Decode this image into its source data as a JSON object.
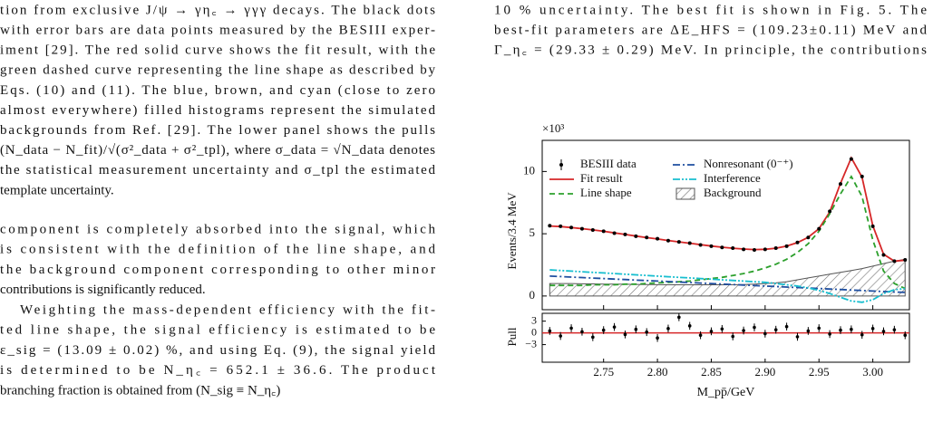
{
  "text": {
    "left_caption": [
      "tion from exclusive J/ψ → γη꜀ → γγγ decays. The black dots",
      "with error bars are data points measured by the BESIII exper-",
      "iment [29]. The red solid curve shows the fit result, with the",
      "green dashed curve representing the line shape as described by",
      "Eqs. (10) and (11). The blue, brown, and cyan (close to zero",
      "almost everywhere) filled histograms represent the simulated",
      "backgrounds from Ref. [29]. The lower panel shows the pulls",
      "(N_data − N_fit)/√(σ²_data + σ²_tpl), where σ_data = √N_data denotes",
      "the statistical measurement uncertainty and σ_tpl the estimated",
      "template uncertainty."
    ],
    "left_body": [
      [
        "component is completely absorbed into the signal, which",
        "is consistent with the definition of the line shape, and",
        "the background component corresponding to other minor",
        "contributions is significantly reduced."
      ],
      [
        "Weighting the mass-dependent efficiency with the fit-",
        "ted line shape, the signal efficiency is estimated to be",
        "ε_sig = (13.09 ± 0.02) %, and using Eq. (9), the signal yield",
        "is determined to be N_η꜀ = 652.1 ± 36.6. The product",
        "branching fraction is obtained from (N_sig ≡ N_η꜀)"
      ]
    ],
    "right_top": [
      "10 % uncertainty. The best fit is shown in Fig. 5. The",
      "best-fit parameters are ΔE_HFS = (109.23±0.11) MeV and",
      "Γ_η꜀ = (29.33 ± 0.29) MeV. In principle, the contributions"
    ]
  },
  "chart_data": {
    "type": "line",
    "scale_label": "×10³",
    "ylabel": "Events/3.4 MeV",
    "xlabel": "M_pp̄/GeV",
    "x": [
      2.7,
      2.71,
      2.72,
      2.73,
      2.74,
      2.75,
      2.76,
      2.77,
      2.78,
      2.79,
      2.8,
      2.81,
      2.82,
      2.83,
      2.84,
      2.85,
      2.86,
      2.87,
      2.88,
      2.89,
      2.9,
      2.91,
      2.92,
      2.93,
      2.94,
      2.95,
      2.96,
      2.97,
      2.98,
      2.99,
      3.0,
      3.01,
      3.02,
      3.03
    ],
    "xlim": [
      2.693,
      3.034
    ],
    "xticks": [
      2.75,
      2.8,
      2.85,
      2.9,
      2.95,
      3.0
    ],
    "xtick_labels": [
      "2.75",
      "2.80",
      "2.85",
      "2.90",
      "2.95",
      "3.00"
    ],
    "ylim": [
      -1.1,
      12.5
    ],
    "yticks": [
      0,
      5,
      10
    ],
    "series": [
      {
        "name": "BESIII data",
        "color": "#000000",
        "style": "points",
        "values": [
          5.65,
          5.6,
          5.5,
          5.4,
          5.3,
          5.2,
          5.05,
          4.95,
          4.8,
          4.7,
          4.6,
          4.45,
          4.35,
          4.25,
          4.1,
          4.0,
          3.9,
          3.85,
          3.75,
          3.7,
          3.75,
          3.85,
          4.0,
          4.3,
          4.7,
          5.4,
          6.8,
          9.0,
          11.0,
          9.6,
          5.6,
          3.3,
          2.8,
          2.9
        ],
        "errors": [
          0.12,
          0.12,
          0.12,
          0.12,
          0.12,
          0.12,
          0.12,
          0.12,
          0.12,
          0.12,
          0.12,
          0.12,
          0.12,
          0.12,
          0.12,
          0.12,
          0.12,
          0.12,
          0.12,
          0.12,
          0.12,
          0.12,
          0.12,
          0.12,
          0.12,
          0.12,
          0.12,
          0.12,
          0.12,
          0.12,
          0.12,
          0.12,
          0.12,
          0.12
        ]
      },
      {
        "name": "Fit result",
        "color": "#d62728",
        "style": "solid",
        "values": [
          5.62,
          5.58,
          5.5,
          5.41,
          5.31,
          5.2,
          5.07,
          4.94,
          4.81,
          4.69,
          4.58,
          4.46,
          4.35,
          4.24,
          4.12,
          4.01,
          3.92,
          3.84,
          3.77,
          3.73,
          3.75,
          3.84,
          4.01,
          4.29,
          4.72,
          5.4,
          6.75,
          9.05,
          11.1,
          9.55,
          5.65,
          3.35,
          2.8,
          2.88
        ]
      },
      {
        "name": "Line shape",
        "color": "#2ca02c",
        "style": "dashed",
        "values": [
          0.85,
          0.85,
          0.85,
          0.85,
          0.9,
          0.9,
          0.9,
          0.95,
          0.95,
          1.0,
          1.05,
          1.1,
          1.15,
          1.2,
          1.3,
          1.4,
          1.5,
          1.65,
          1.8,
          2.0,
          2.25,
          2.55,
          2.95,
          3.5,
          4.2,
          5.2,
          6.6,
          8.2,
          9.6,
          8.0,
          4.5,
          2.0,
          1.0,
          0.6
        ]
      },
      {
        "name": "Nonresonant (0⁻⁺)",
        "color": "#1f4fa0",
        "style": "dashdot",
        "values": [
          1.6,
          1.56,
          1.52,
          1.48,
          1.44,
          1.4,
          1.36,
          1.32,
          1.28,
          1.24,
          1.2,
          1.16,
          1.12,
          1.08,
          1.04,
          1.0,
          0.96,
          0.92,
          0.88,
          0.84,
          0.8,
          0.76,
          0.72,
          0.68,
          0.64,
          0.6,
          0.56,
          0.52,
          0.48,
          0.44,
          0.4,
          0.36,
          0.32,
          0.3
        ]
      },
      {
        "name": "Interference",
        "color": "#17becf",
        "style": "dashdotdot",
        "values": [
          2.1,
          2.05,
          2.0,
          1.95,
          1.9,
          1.85,
          1.8,
          1.75,
          1.7,
          1.65,
          1.6,
          1.55,
          1.5,
          1.45,
          1.4,
          1.35,
          1.3,
          1.25,
          1.2,
          1.15,
          1.1,
          1.0,
          0.9,
          0.8,
          0.65,
          0.45,
          0.2,
          -0.1,
          -0.4,
          -0.5,
          -0.3,
          0.2,
          0.5,
          0.6
        ]
      },
      {
        "name": "Background",
        "color": "#555555",
        "style": "hatched",
        "values": [
          1.0,
          1.0,
          1.0,
          0.98,
          0.97,
          0.96,
          0.95,
          0.94,
          0.93,
          0.92,
          0.91,
          0.9,
          0.9,
          0.9,
          0.9,
          0.9,
          0.9,
          0.9,
          0.92,
          0.95,
          1.0,
          1.05,
          1.15,
          1.3,
          1.45,
          1.6,
          1.75,
          1.9,
          2.05,
          2.2,
          2.4,
          2.6,
          2.8,
          2.95
        ]
      }
    ],
    "pull": {
      "ylabel": "Pull",
      "ylim": [
        -7.5,
        5
      ],
      "yticks": [
        3,
        0,
        {
          "value": -3,
          "label": "−3"
        }
      ],
      "values": [
        0.5,
        -0.8,
        1.2,
        0.3,
        -1.1,
        0.7,
        1.5,
        -0.4,
        0.9,
        0.2,
        -1.3,
        1.1,
        4.0,
        1.8,
        -0.6,
        0.4,
        1.0,
        -0.9,
        0.6,
        1.4,
        -0.2,
        0.8,
        1.6,
        -1.0,
        0.5,
        1.2,
        -0.3,
        0.7,
        0.9,
        -0.5,
        1.1,
        0.4,
        0.8,
        -0.6
      ],
      "errors": [
        1,
        1,
        1,
        1,
        1,
        1,
        1,
        1,
        1,
        1,
        1,
        1,
        1,
        1,
        1,
        1,
        1,
        1,
        1,
        1,
        1,
        1,
        1,
        1,
        1,
        1,
        1,
        1,
        1,
        1,
        1,
        1,
        1,
        1
      ]
    }
  }
}
